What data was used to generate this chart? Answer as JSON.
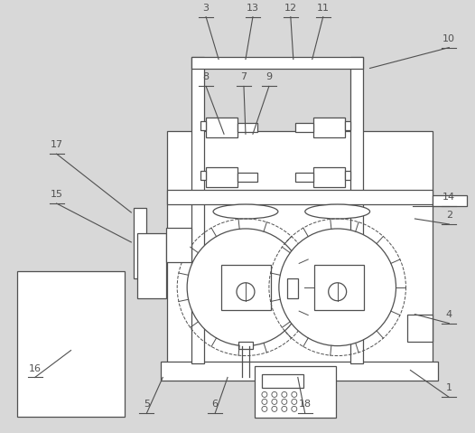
{
  "bg_color": "#d8d8d8",
  "line_color": "#505050",
  "lw": 0.9,
  "fig_w": 5.26,
  "fig_h": 4.79,
  "dpi": 100,
  "leaders": [
    [
      "1",
      498,
      440,
      455,
      410
    ],
    [
      "2",
      498,
      248,
      460,
      242
    ],
    [
      "3",
      228,
      18,
      242,
      65
    ],
    [
      "4",
      498,
      358,
      460,
      348
    ],
    [
      "5",
      162,
      458,
      180,
      418
    ],
    [
      "6",
      238,
      458,
      252,
      418
    ],
    [
      "7",
      270,
      95,
      272,
      148
    ],
    [
      "8",
      228,
      95,
      248,
      148
    ],
    [
      "9",
      298,
      95,
      280,
      148
    ],
    [
      "10",
      498,
      52,
      410,
      75
    ],
    [
      "11",
      358,
      18,
      346,
      65
    ],
    [
      "12",
      322,
      18,
      325,
      65
    ],
    [
      "13",
      280,
      18,
      272,
      65
    ],
    [
      "14",
      498,
      228,
      458,
      228
    ],
    [
      "15",
      62,
      225,
      145,
      268
    ],
    [
      "16",
      38,
      418,
      78,
      388
    ],
    [
      "17",
      62,
      170,
      145,
      235
    ],
    [
      "18",
      338,
      458,
      330,
      418
    ]
  ]
}
